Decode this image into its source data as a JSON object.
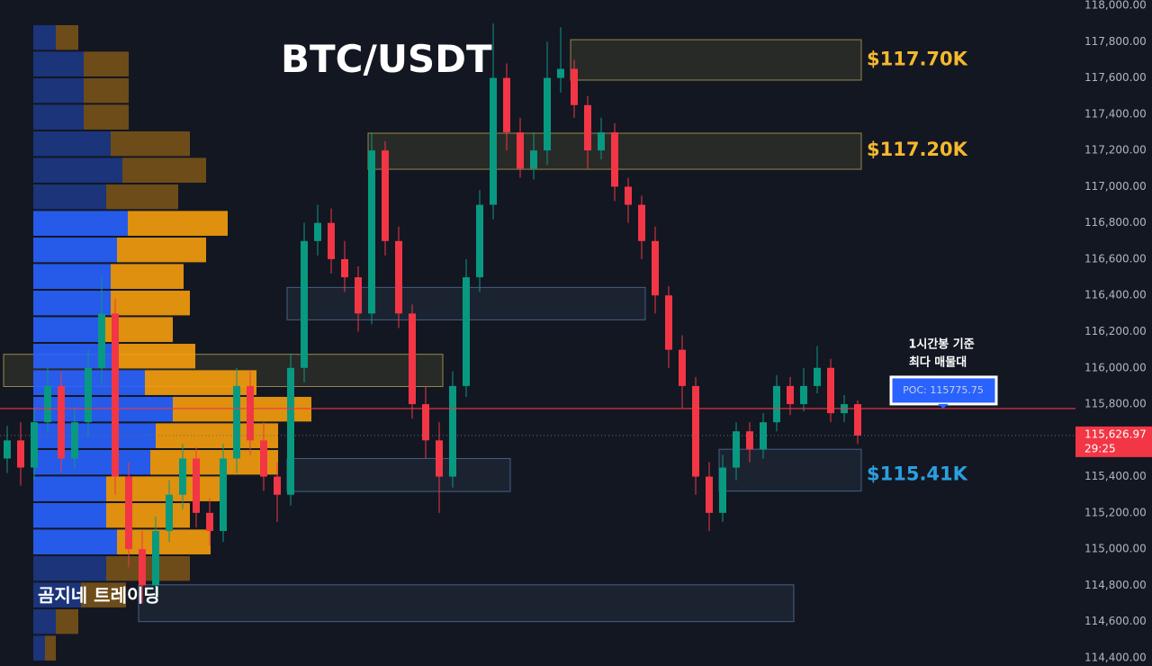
{
  "chart_data": {
    "type": "candlestick",
    "title": "BTC/USDT",
    "watermark": "곰지네 트레이딩",
    "up_color": "#089981",
    "down_color": "#f23645",
    "open": [
      115500,
      115600,
      115450,
      115700,
      115900,
      115500,
      115700,
      116000,
      116300,
      115400,
      115000,
      114800,
      115100,
      115300,
      115500,
      115200,
      115100,
      115500,
      115900,
      115600,
      115400,
      115300,
      116000,
      116700,
      116800,
      116600,
      116500,
      116300,
      117200,
      116700,
      116300,
      115800,
      115600,
      115400,
      115900,
      116500,
      116900,
      117600,
      117300,
      117100,
      117200,
      117600,
      117650,
      117450,
      117200,
      117300,
      117000,
      116900,
      116700,
      116400,
      116100,
      115900,
      115400,
      115200,
      115450,
      115650,
      115550,
      115700,
      115900,
      115800,
      115900,
      116000,
      115750,
      115800
    ],
    "high": [
      115680,
      115700,
      115780,
      116000,
      115980,
      115780,
      116100,
      116500,
      116380,
      115480,
      115100,
      115180,
      115380,
      115580,
      115560,
      115280,
      115580,
      116000,
      115980,
      115700,
      115480,
      116080,
      116800,
      116900,
      116880,
      116700,
      116560,
      117300,
      117250,
      116780,
      116350,
      115900,
      115700,
      115980,
      116600,
      116980,
      117900,
      117680,
      117380,
      117300,
      117800,
      117880,
      117700,
      117500,
      117380,
      117350,
      117050,
      116950,
      116780,
      116450,
      116180,
      115950,
      115480,
      115520,
      115700,
      115700,
      115750,
      115960,
      115950,
      116000,
      116120,
      116050,
      115850,
      115820
    ],
    "low": [
      115420,
      115350,
      115380,
      115640,
      115420,
      115440,
      115620,
      115900,
      115300,
      114900,
      114700,
      114720,
      115040,
      115220,
      115120,
      115020,
      115040,
      115420,
      115520,
      115320,
      115150,
      115240,
      115920,
      116620,
      116520,
      116420,
      116200,
      116240,
      116620,
      116220,
      115720,
      115500,
      115200,
      115340,
      115840,
      116420,
      116820,
      117200,
      117050,
      117040,
      117120,
      117520,
      117380,
      117100,
      117150,
      116920,
      116800,
      116600,
      116300,
      116000,
      115780,
      115300,
      115100,
      115150,
      115380,
      115480,
      115500,
      115650,
      115740,
      115760,
      115860,
      115700,
      115700,
      115580
    ],
    "close": [
      115600,
      115450,
      115700,
      115900,
      115500,
      115700,
      116000,
      116300,
      115400,
      115000,
      114800,
      115100,
      115300,
      115500,
      115200,
      115100,
      115500,
      115900,
      115600,
      115400,
      115300,
      116000,
      116700,
      116800,
      116600,
      116500,
      116300,
      117200,
      116700,
      116300,
      115800,
      115600,
      115400,
      115900,
      116500,
      116900,
      117600,
      117300,
      117100,
      117200,
      117600,
      117650,
      117450,
      117200,
      117300,
      117000,
      116900,
      116700,
      116400,
      116100,
      115900,
      115400,
      115200,
      115450,
      115650,
      115550,
      115700,
      115900,
      115800,
      115900,
      116000,
      115750,
      115800,
      115626.97
    ],
    "ylim": [
      114355,
      118030
    ],
    "grid": false,
    "yticks": [
      {
        "value": 118000,
        "label": "118,000.00"
      },
      {
        "value": 117800,
        "label": "117,800.00"
      },
      {
        "value": 117600,
        "label": "117,600.00"
      },
      {
        "value": 117400,
        "label": "117,400.00"
      },
      {
        "value": 117200,
        "label": "117,200.00"
      },
      {
        "value": 117000,
        "label": "117,000.00"
      },
      {
        "value": 116800,
        "label": "116,800.00"
      },
      {
        "value": 116600,
        "label": "116,600.00"
      },
      {
        "value": 116400,
        "label": "116,400.00"
      },
      {
        "value": 116200,
        "label": "116,200.00"
      },
      {
        "value": 116000,
        "label": "116,000.00"
      },
      {
        "value": 115800,
        "label": "115,800.00"
      },
      {
        "value": 115600,
        "label": "115,600.00"
      },
      {
        "value": 115400,
        "label": "115,400.00"
      },
      {
        "value": 115200,
        "label": "115,200.00"
      },
      {
        "value": 115000,
        "label": "115,000.00"
      },
      {
        "value": 114800,
        "label": "114,800.00"
      },
      {
        "value": 114600,
        "label": "114,600.00"
      },
      {
        "value": 114400,
        "label": "114,400.00"
      }
    ],
    "volume_profile": {
      "bins": [
        117896,
        117750,
        117603,
        117457,
        117310,
        117164,
        117017,
        116871,
        116724,
        116578,
        116431,
        116285,
        116138,
        115992,
        115845,
        115699,
        115552,
        115406,
        115259,
        115113,
        114966,
        114820,
        114673,
        114527,
        114380
      ],
      "buy": [
        25,
        56,
        56,
        56,
        86,
        99,
        81,
        105,
        93,
        86,
        86,
        80,
        93,
        124,
        155,
        136,
        130,
        81,
        81,
        93,
        81,
        53,
        25,
        13
      ],
      "sell": [
        25,
        50,
        50,
        50,
        88,
        93,
        80,
        111,
        99,
        81,
        88,
        75,
        87,
        124,
        154,
        136,
        142,
        129,
        93,
        104,
        93,
        50,
        25,
        12
      ],
      "buy_color": "#2962ff",
      "sell_color": "#f59d0c",
      "value_area": [
        114966,
        116871
      ]
    },
    "zones": [
      {
        "top": 117811,
        "bottom": 117588,
        "start": 42,
        "end": 63,
        "color": "#c9b458",
        "label": {
          "value": 117700,
          "label": "$117.70K"
        }
      },
      {
        "top": 117295,
        "bottom": 117096,
        "start": 27,
        "end": 63,
        "color": "#c9b458",
        "label": {
          "value": 117200,
          "label": "$117.20K"
        }
      },
      {
        "top": 116444,
        "bottom": 116265,
        "start": 21,
        "end": 47,
        "color": "#5b7aa8"
      },
      {
        "top": 116075,
        "bottom": 115897,
        "start": 0,
        "end": 32,
        "color": "#c9b458"
      },
      {
        "top": 115500,
        "bottom": 115318,
        "start": 21,
        "end": 37,
        "color": "#5b7aa8"
      },
      {
        "top": 115551,
        "bottom": 115320,
        "start": 53,
        "end": 63,
        "color": "#5b7aa8",
        "label": {
          "value": 115410,
          "label": "$115.41K"
        }
      },
      {
        "top": 114803,
        "bottom": 114600,
        "start": 10,
        "end": 58,
        "color": "#5b7aa8"
      }
    ],
    "annotation": [
      "1시간봉 기준",
      "최다 매물대"
    ],
    "poc": {
      "value": 115775.75,
      "label": "POC: 115775.75",
      "color": "#f23645"
    },
    "last_price": {
      "value": 115626.97,
      "label": "115,626.97"
    },
    "countdown": "29:25"
  }
}
